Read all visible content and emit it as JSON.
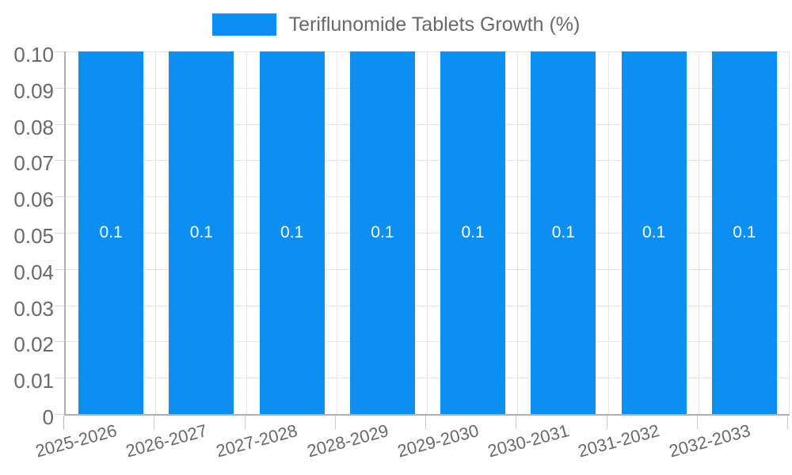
{
  "chart_data": {
    "type": "bar",
    "title": "",
    "legend_label": "Teriflunomide Tablets Growth (%)",
    "legend_position": "top-center",
    "categories": [
      "2025-2026",
      "2026-2027",
      "2027-2028",
      "2028-2029",
      "2029-2030",
      "2030-2031",
      "2031-2032",
      "2032-2033"
    ],
    "series": [
      {
        "name": "Teriflunomide Tablets Growth (%)",
        "values": [
          0.1,
          0.1,
          0.1,
          0.1,
          0.1,
          0.1,
          0.1,
          0.1
        ]
      }
    ],
    "bar_value_labels": [
      "0.1",
      "0.1",
      "0.1",
      "0.1",
      "0.1",
      "0.1",
      "0.1",
      "0.1"
    ],
    "y_tick_labels": [
      "0.10",
      "0.09",
      "0.08",
      "0.07",
      "0.06",
      "0.05",
      "0.04",
      "0.03",
      "0.02",
      "0.01",
      "0"
    ],
    "ylim": [
      0,
      0.1
    ],
    "xlabel": "",
    "ylabel": "",
    "grid": true,
    "colors": {
      "bar": "#0d8ff2",
      "axis_line": "#b0b0b0",
      "grid_line": "#e6e6e6",
      "tick_line": "#cccccc",
      "label_text": "#696969",
      "bar_label_text": "#ffffff",
      "background": "#ffffff"
    }
  }
}
